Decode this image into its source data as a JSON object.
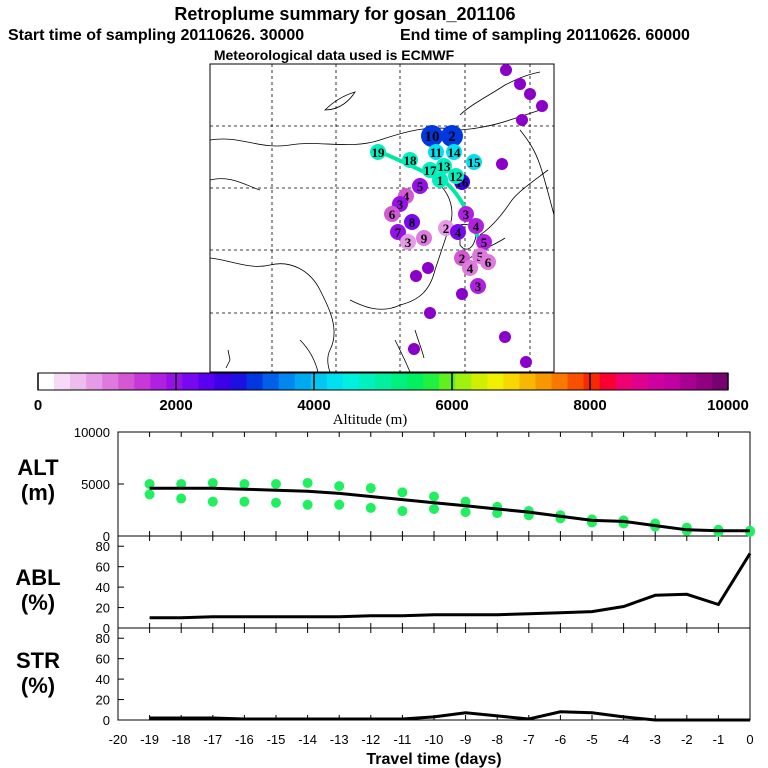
{
  "header": {
    "title": "Retroplume summary for gosan_201106",
    "start_label": "Start time of sampling 20110626. 30000",
    "end_label": "End time of sampling 20110626. 60000",
    "met_label": "Meteorological data used is ECMWF"
  },
  "colorbar": {
    "ticks": [
      "0",
      "2000",
      "4000",
      "6000",
      "8000",
      "10000"
    ],
    "label": "Altitude (m)",
    "colors": [
      "#ffffff",
      "#f6daf6",
      "#eebcee",
      "#e69be6",
      "#de7ade",
      "#d458d4",
      "#c838d8",
      "#b020e0",
      "#9810e8",
      "#7808f0",
      "#5a00f0",
      "#3c00e8",
      "#1e10e0",
      "#0038e0",
      "#0060e8",
      "#0088f0",
      "#00a8f0",
      "#00c8f0",
      "#00e0f0",
      "#00f0e0",
      "#00f0c0",
      "#00f0a0",
      "#00f080",
      "#00f060",
      "#20f040",
      "#60f020",
      "#a0f010",
      "#d0f000",
      "#f0f000",
      "#f8d800",
      "#f8b800",
      "#f89800",
      "#f87800",
      "#f85000",
      "#f82800",
      "#f80030",
      "#f00070",
      "#e00090",
      "#d000a0",
      "#c000a0",
      "#a80090",
      "#900080",
      "#780070"
    ]
  },
  "map": {
    "markers": [
      {
        "label": "10",
        "v": 3000,
        "big": true
      },
      {
        "label": "2",
        "v": 3000,
        "big": true
      },
      {
        "label": "11",
        "v": 4200
      },
      {
        "label": "14",
        "v": 4200
      },
      {
        "label": "15",
        "v": 4400
      },
      {
        "label": "16",
        "v": 2600
      },
      {
        "label": "19",
        "v": 4800
      },
      {
        "label": "18",
        "v": 4800
      },
      {
        "label": "17",
        "v": 4800
      },
      {
        "label": "13",
        "v": 4800
      },
      {
        "label": "12",
        "v": 4800
      },
      {
        "label": "1",
        "v": 4800
      },
      {
        "label": "5",
        "v": 2000
      },
      {
        "label": "4",
        "v": 1200
      },
      {
        "label": "3",
        "v": 1800
      },
      {
        "label": "6",
        "v": 1200
      },
      {
        "label": "7",
        "v": 1800
      },
      {
        "label": "8",
        "v": 2200
      },
      {
        "label": "9",
        "v": 1000
      },
      {
        "label": "3",
        "v": 600
      },
      {
        "label": "2",
        "v": 800
      },
      {
        "label": "4",
        "v": 2200
      },
      {
        "label": "3",
        "v": 1600
      },
      {
        "label": "4",
        "v": 1600
      },
      {
        "label": "5",
        "v": 1600
      },
      {
        "label": "3",
        "v": 1600
      },
      {
        "label": "2",
        "v": 1200
      },
      {
        "label": "4",
        "v": 1000
      },
      {
        "label": "5",
        "v": 1000
      },
      {
        "label": "6",
        "v": 1000
      }
    ]
  },
  "panels": {
    "alt": {
      "name_line1": "ALT",
      "name_line2": "(m)",
      "yticks": [
        "10000",
        "5000",
        "0"
      ]
    },
    "abl": {
      "name_line1": "ABL",
      "name_line2": "(%)",
      "yticks": [
        "80",
        "60",
        "40",
        "20",
        "0"
      ]
    },
    "str": {
      "name_line1": "STR",
      "name_line2": "(%)",
      "yticks": [
        "80",
        "60",
        "40",
        "20",
        "0"
      ]
    }
  },
  "xaxis": {
    "title": "Travel time (days)",
    "ticks": [
      "-20",
      "-19",
      "-18",
      "-17",
      "-16",
      "-15",
      "-14",
      "-13",
      "-12",
      "-11",
      "-10",
      "-9",
      "-8",
      "-7",
      "-6",
      "-5",
      "-4",
      "-3",
      "-2",
      "-1",
      "0"
    ]
  },
  "chart_data": [
    {
      "type": "line",
      "title": "ALT (m)",
      "xlabel": "Travel time (days)",
      "ylabel": "ALT (m)",
      "ylim": [
        0,
        10000
      ],
      "xlim": [
        -20,
        0
      ],
      "series": [
        {
          "name": "median altitude",
          "x": [
            -19,
            -18,
            -17,
            -16,
            -15,
            -14,
            -13,
            -12,
            -11,
            -10,
            -9,
            -8,
            -7,
            -6,
            -5,
            -4,
            -3,
            -2,
            -1,
            0
          ],
          "values": [
            4600,
            4600,
            4600,
            4500,
            4400,
            4300,
            4100,
            3800,
            3500,
            3200,
            2900,
            2600,
            2300,
            1900,
            1500,
            1400,
            1000,
            600,
            500,
            500
          ]
        },
        {
          "name": "cluster altitudes (upper)",
          "x": [
            -19,
            -18,
            -17,
            -16,
            -15,
            -14,
            -13,
            -12,
            -11,
            -10,
            -9,
            -8,
            -7,
            -6,
            -5,
            -4,
            -3,
            -2,
            -1,
            0
          ],
          "values": [
            5000,
            5000,
            5100,
            5000,
            5000,
            5100,
            4800,
            4600,
            4200,
            3800,
            3300,
            2800,
            2400,
            2000,
            1600,
            1500,
            1200,
            800,
            600,
            500
          ]
        },
        {
          "name": "cluster altitudes (lower)",
          "x": [
            -19,
            -18,
            -17,
            -16,
            -15,
            -14,
            -13,
            -12,
            -11,
            -10,
            -9,
            -8,
            -7,
            -6,
            -5,
            -4,
            -3,
            -2,
            -1,
            0
          ],
          "values": [
            4000,
            3600,
            3300,
            3300,
            3200,
            3000,
            3000,
            2700,
            2400,
            2600,
            2300,
            2200,
            2000,
            1700,
            1300,
            1200,
            900,
            500,
            400,
            400
          ]
        }
      ]
    },
    {
      "type": "line",
      "title": "ABL (%)",
      "xlabel": "Travel time (days)",
      "ylabel": "ABL (%)",
      "ylim": [
        0,
        90
      ],
      "xlim": [
        -20,
        0
      ],
      "series": [
        {
          "name": "ABL",
          "x": [
            -19,
            -18,
            -17,
            -16,
            -15,
            -14,
            -13,
            -12,
            -11,
            -10,
            -9,
            -8,
            -7,
            -6,
            -5,
            -4,
            -3,
            -2,
            -1,
            0
          ],
          "values": [
            10,
            10,
            11,
            11,
            11,
            11,
            11,
            12,
            12,
            13,
            13,
            13,
            14,
            15,
            16,
            21,
            32,
            33,
            23,
            73
          ]
        }
      ]
    },
    {
      "type": "line",
      "title": "STR (%)",
      "xlabel": "Travel time (days)",
      "ylabel": "STR (%)",
      "ylim": [
        0,
        90
      ],
      "xlim": [
        -20,
        0
      ],
      "series": [
        {
          "name": "STR",
          "x": [
            -19,
            -18,
            -17,
            -16,
            -15,
            -14,
            -13,
            -12,
            -11,
            -10,
            -9,
            -8,
            -7,
            -6,
            -5,
            -4,
            -3,
            -2,
            -1,
            0
          ],
          "values": [
            2,
            2,
            2,
            1,
            1,
            1,
            1,
            1,
            1,
            3,
            7,
            4,
            1,
            8,
            7,
            3,
            0,
            0,
            0,
            0
          ]
        }
      ]
    }
  ]
}
